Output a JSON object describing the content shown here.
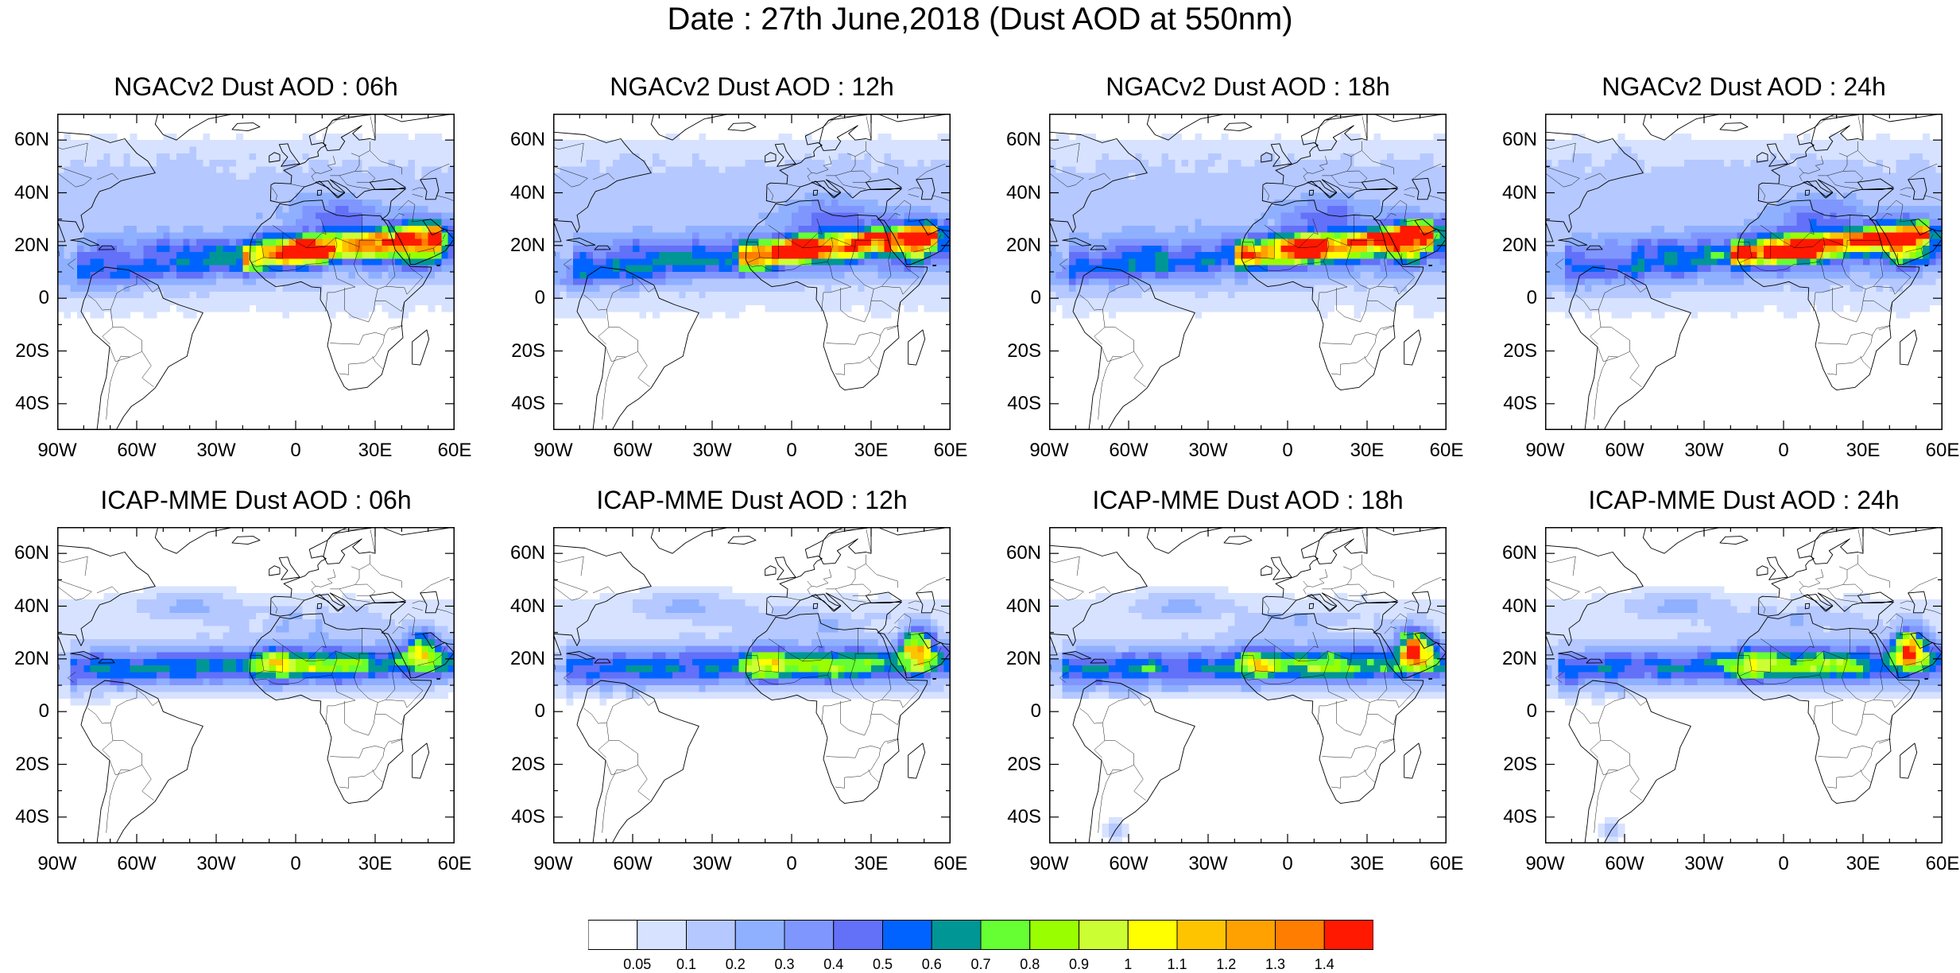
{
  "title": "Date : 27th June,2018 (Dust AOD at 550nm)",
  "panels": [
    {
      "title": "NGACv2 Dust AOD : 06h"
    },
    {
      "title": "NGACv2 Dust AOD : 12h"
    },
    {
      "title": "NGACv2 Dust AOD : 18h"
    },
    {
      "title": "NGACv2 Dust AOD : 24h"
    },
    {
      "title": "ICAP-MME Dust AOD : 06h"
    },
    {
      "title": "ICAP-MME Dust AOD : 12h"
    },
    {
      "title": "ICAP-MME Dust AOD : 18h"
    },
    {
      "title": "ICAP-MME Dust AOD : 24h"
    }
  ],
  "axes": {
    "lat_labels": [
      "60N",
      "40N",
      "20N",
      "0",
      "20S",
      "40S"
    ],
    "lon_labels": [
      "90W",
      "60W",
      "30W",
      "0",
      "30E",
      "60E"
    ],
    "lon_range": [
      -90,
      60
    ],
    "lat_range": [
      -50,
      70
    ]
  },
  "colorbar": {
    "labels": [
      "0.05",
      "0.1",
      "0.2",
      "0.3",
      "0.4",
      "0.5",
      "0.6",
      "0.7",
      "0.8",
      "0.9",
      "1",
      "1.1",
      "1.2",
      "1.3",
      "1.4"
    ],
    "colors": [
      "#ffffff",
      "#d6e2ff",
      "#b5c8ff",
      "#8fb0ff",
      "#7f96ff",
      "#6370f8",
      "#0063ff",
      "#009696",
      "#66ff33",
      "#99ff00",
      "#ccff33",
      "#ffff00",
      "#ffc400",
      "#ffa100",
      "#ff7d00",
      "#ff1900"
    ]
  },
  "chart_data": {
    "type": "heatmap",
    "variable": "Dust AOD at 550nm",
    "lon_range": [
      -90,
      60
    ],
    "lat_range": [
      -50,
      70
    ]
  }
}
